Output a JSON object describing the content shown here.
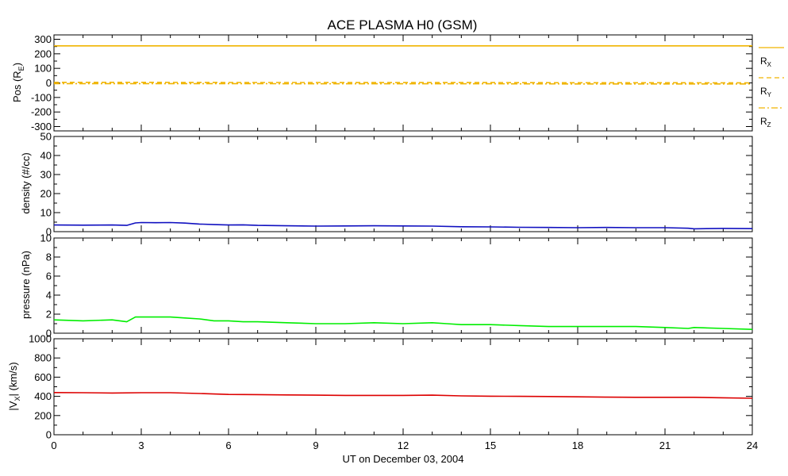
{
  "title": "ACE PLASMA H0 (GSM)",
  "xlabel": "UT on December 03, 2004",
  "x_ticks": [
    "0",
    "3",
    "6",
    "9",
    "12",
    "15",
    "18",
    "21",
    "24"
  ],
  "colors": {
    "rx": "#f0b400",
    "ry": "#f0b400",
    "rz": "#f0b400",
    "density": "#1010c0",
    "pressure": "#00ee00",
    "vx": "#dd0000"
  },
  "legend": {
    "rx": "X",
    "ry": "Y",
    "rz": "Z",
    "r": "R"
  },
  "panel_labels": {
    "pos": {
      "main": "Pos (R",
      "sub": "E",
      "end": ")"
    },
    "density": "density (#/cc)",
    "pressure": "pressure (nPa)",
    "vx": {
      "start": "|V",
      "sub": "X",
      "end": "| (km/s)"
    }
  },
  "chart_data": [
    {
      "type": "line",
      "title": "ACE PLASMA H0 (GSM)",
      "ylabel": "Pos (RE)",
      "xlim": [
        0,
        24
      ],
      "ylim": [
        -330,
        330
      ],
      "y_ticks": [
        "300",
        "200",
        "100",
        "0",
        "-100",
        "-200",
        "-300"
      ],
      "y_tick_values": [
        300,
        200,
        100,
        0,
        -100,
        -200,
        -300
      ],
      "x": [
        0,
        3,
        6,
        9,
        12,
        15,
        18,
        21,
        24
      ],
      "series": [
        {
          "name": "RX",
          "style": "solid",
          "values": [
            255,
            255,
            255,
            255,
            255,
            255,
            255,
            255,
            255
          ]
        },
        {
          "name": "RY",
          "style": "dashed",
          "values": [
            4,
            4,
            3,
            3,
            2,
            2,
            1,
            1,
            0
          ]
        },
        {
          "name": "RZ",
          "style": "dashdot",
          "values": [
            -5,
            -5,
            -5,
            -6,
            -6,
            -6,
            -7,
            -7,
            -7
          ]
        }
      ]
    },
    {
      "type": "line",
      "ylabel": "density (#/cc)",
      "xlim": [
        0,
        24
      ],
      "ylim": [
        0,
        50
      ],
      "y_ticks": [
        "50",
        "40",
        "30",
        "20",
        "10",
        "0"
      ],
      "y_tick_values": [
        50,
        40,
        30,
        20,
        10,
        0
      ],
      "x": [
        0,
        1,
        2,
        2.5,
        2.8,
        3,
        3.5,
        4,
        4.5,
        5,
        5.5,
        6,
        6.5,
        7,
        8,
        9,
        10,
        11,
        12,
        13,
        14,
        15,
        16,
        17,
        18,
        19,
        20,
        21,
        21.8,
        22,
        23,
        24
      ],
      "series": [
        {
          "name": "density",
          "values": [
            3.5,
            3.4,
            3.5,
            3.3,
            4.6,
            4.8,
            4.7,
            4.8,
            4.5,
            4.0,
            3.7,
            3.5,
            3.6,
            3.3,
            3.1,
            2.9,
            3.0,
            3.1,
            3.0,
            2.9,
            2.6,
            2.5,
            2.3,
            2.2,
            2.1,
            2.2,
            2.1,
            2.1,
            1.8,
            1.5,
            1.7,
            1.6
          ]
        }
      ]
    },
    {
      "type": "line",
      "ylabel": "pressure (nPa)",
      "xlim": [
        0,
        24
      ],
      "ylim": [
        0,
        10
      ],
      "y_ticks": [
        "10",
        "8",
        "6",
        "4",
        "2",
        "0"
      ],
      "y_tick_values": [
        10,
        8,
        6,
        4,
        2,
        0
      ],
      "x": [
        0,
        1,
        2,
        2.5,
        2.8,
        3,
        3.5,
        4,
        4.5,
        5,
        5.5,
        6,
        6.5,
        7,
        8,
        9,
        10,
        11,
        12,
        13,
        13.5,
        14,
        15,
        16,
        17,
        18,
        19,
        20,
        21,
        21.8,
        22,
        23,
        24
      ],
      "series": [
        {
          "name": "pressure",
          "values": [
            1.4,
            1.3,
            1.4,
            1.2,
            1.7,
            1.7,
            1.7,
            1.7,
            1.6,
            1.5,
            1.3,
            1.3,
            1.2,
            1.2,
            1.1,
            1.0,
            1.0,
            1.1,
            1.0,
            1.1,
            1.0,
            0.9,
            0.9,
            0.8,
            0.7,
            0.7,
            0.7,
            0.7,
            0.6,
            0.5,
            0.6,
            0.5,
            0.4
          ]
        }
      ]
    },
    {
      "type": "line",
      "ylabel": "|VX| (km/s)",
      "xlim": [
        0,
        24
      ],
      "ylim": [
        0,
        1000
      ],
      "y_ticks": [
        "1000",
        "800",
        "600",
        "400",
        "200",
        "0"
      ],
      "y_tick_values": [
        1000,
        800,
        600,
        400,
        200,
        0
      ],
      "x": [
        0,
        1,
        2,
        3,
        4,
        5,
        6,
        7,
        8,
        9,
        10,
        11,
        12,
        13,
        14,
        15,
        16,
        17,
        18,
        19,
        20,
        21,
        22,
        23,
        24
      ],
      "series": [
        {
          "name": "vx",
          "values": [
            440,
            438,
            435,
            438,
            438,
            430,
            420,
            418,
            415,
            412,
            410,
            410,
            410,
            412,
            405,
            402,
            400,
            398,
            395,
            392,
            390,
            390,
            390,
            385,
            380
          ]
        }
      ]
    }
  ]
}
